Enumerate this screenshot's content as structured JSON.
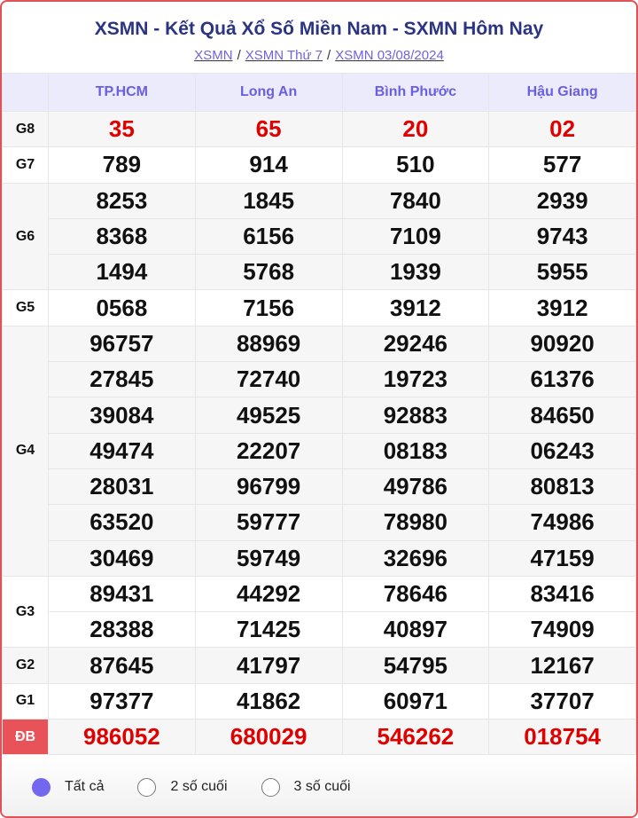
{
  "header": {
    "title": "XSMN - Kết Quả Xổ Số Miền Nam - SXMN Hôm Nay",
    "breadcrumbs": [
      "XSMN",
      "XSMN Thứ 7",
      "XSMN 03/08/2024"
    ],
    "separator": "/"
  },
  "table": {
    "provinces": [
      "TP.HCM",
      "Long An",
      "Bình Phước",
      "Hậu Giang"
    ],
    "prizes": [
      {
        "label": "G8",
        "rows": [
          [
            "35",
            "65",
            "20",
            "02"
          ]
        ],
        "highlight": true
      },
      {
        "label": "G7",
        "rows": [
          [
            "789",
            "914",
            "510",
            "577"
          ]
        ]
      },
      {
        "label": "G6",
        "rows": [
          [
            "8253",
            "1845",
            "7840",
            "2939"
          ],
          [
            "8368",
            "6156",
            "7109",
            "9743"
          ],
          [
            "1494",
            "5768",
            "1939",
            "5955"
          ]
        ]
      },
      {
        "label": "G5",
        "rows": [
          [
            "0568",
            "7156",
            "3912",
            "3912"
          ]
        ]
      },
      {
        "label": "G4",
        "rows": [
          [
            "96757",
            "88969",
            "29246",
            "90920"
          ],
          [
            "27845",
            "72740",
            "19723",
            "61376"
          ],
          [
            "39084",
            "49525",
            "92883",
            "84650"
          ],
          [
            "49474",
            "22207",
            "08183",
            "06243"
          ],
          [
            "28031",
            "96799",
            "49786",
            "80813"
          ],
          [
            "63520",
            "59777",
            "78980",
            "74986"
          ],
          [
            "30469",
            "59749",
            "32696",
            "47159"
          ]
        ]
      },
      {
        "label": "G3",
        "rows": [
          [
            "89431",
            "44292",
            "78646",
            "83416"
          ],
          [
            "28388",
            "71425",
            "40897",
            "74909"
          ]
        ]
      },
      {
        "label": "G2",
        "rows": [
          [
            "87645",
            "41797",
            "54795",
            "12167"
          ]
        ]
      },
      {
        "label": "G1",
        "rows": [
          [
            "97377",
            "41862",
            "60971",
            "37707"
          ]
        ]
      },
      {
        "label": "ĐB",
        "rows": [
          [
            "986052",
            "680029",
            "546262",
            "018754"
          ]
        ],
        "highlight": true
      }
    ]
  },
  "filters": {
    "options": [
      "Tất cả",
      "2 số cuối",
      "3 số cuối"
    ],
    "selected": 0
  },
  "colors": {
    "accent": "#7367f0",
    "title": "#2b3483",
    "prize_red": "#e00000",
    "border": "#e0525a"
  }
}
